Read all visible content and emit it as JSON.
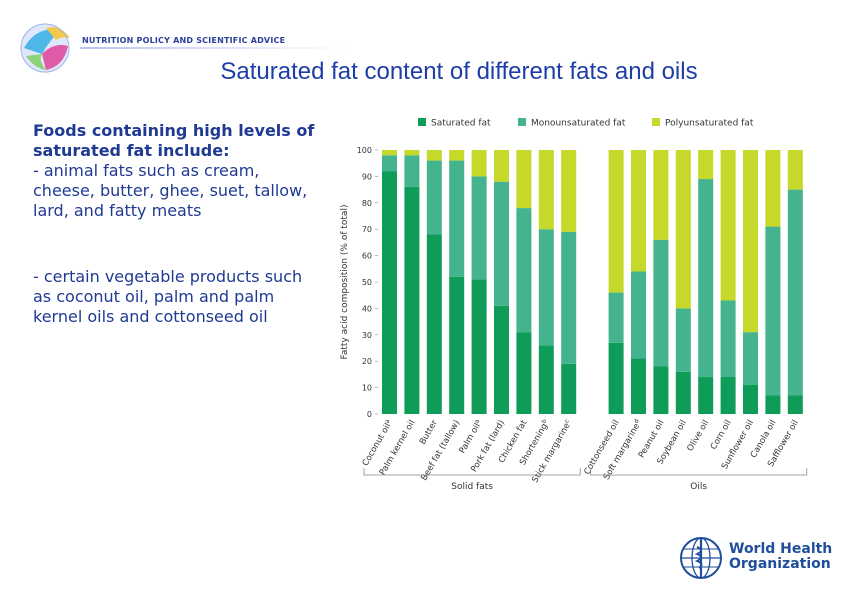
{
  "header": {
    "org_tagline": "NUTRITION POLICY AND SCIENTIFIC ADVICE"
  },
  "slide": {
    "title": "Saturated fat content of different fats and oils"
  },
  "left_text": {
    "heading": "Foods containing high levels of saturated fat include:",
    "bullet1": "- animal fats such as cream, cheese, butter, ghee, suet, tallow, lard, and fatty meats",
    "bullet2": "- certain vegetable products such as coconut oil, palm and palm kernel oils and cottonseed oil"
  },
  "footer": {
    "who_line1": "World Health",
    "who_line2": "Organization"
  },
  "chart_data": {
    "type": "bar",
    "stacked": true,
    "ylabel": "Fatty acid composition (% of total)",
    "ylim": [
      0,
      100
    ],
    "yticks": [
      0,
      10,
      20,
      30,
      40,
      50,
      60,
      70,
      80,
      90,
      100
    ],
    "grid": false,
    "legend_position": "top",
    "categories": [
      "Coconut oil",
      "Palm kernel oil",
      "Butter",
      "Beef fat (tallow)",
      "Palm oil",
      "Pork fat (lard)",
      "Chicken fat",
      "Shortening",
      "Stick margarine",
      "Cottonseed oil",
      "Soft margarine",
      "Peanut oil",
      "Soybean oil",
      "Olive oil",
      "Corn oil",
      "Sunflower oil",
      "Canola oil",
      "Safflower oil"
    ],
    "category_labels": [
      "Coconut oil",
      "Palm kernel oil",
      "Butter",
      "Beef fat (tallow)",
      "Palm oil",
      "Pork fat (lard)",
      "Chicken fat",
      "Shortening",
      "Stick margarine",
      "Cottonseed oil",
      "Soft margarine",
      "Peanut oil",
      "Soybean oil",
      "Olive oil",
      "Corn oil",
      "Sunflower oil",
      "Canola oil",
      "Safflower oil"
    ],
    "label_superscripts": [
      "a",
      "",
      "",
      "",
      "a",
      "",
      "",
      "b",
      "c",
      "",
      "d",
      "",
      "",
      "",
      "",
      "",
      "",
      ""
    ],
    "groups": [
      {
        "label": "Solid fats",
        "categories": [
          "Coconut oil",
          "Palm kernel oil",
          "Butter",
          "Beef fat (tallow)",
          "Palm oil",
          "Pork fat (lard)",
          "Chicken fat",
          "Shortening",
          "Stick margarine"
        ]
      },
      {
        "label": "Oils",
        "categories": [
          "Cottonseed oil",
          "Soft margarine",
          "Peanut oil",
          "Soybean oil",
          "Olive oil",
          "Corn oil",
          "Sunflower oil",
          "Canola oil",
          "Safflower oil"
        ]
      }
    ],
    "series": [
      {
        "name": "Saturated fat",
        "color": "#0f9b58",
        "values": [
          92,
          86,
          68,
          52,
          51,
          41,
          31,
          26,
          19,
          27,
          21,
          18,
          16,
          14,
          14,
          11,
          7,
          7
        ]
      },
      {
        "name": "Monounsaturated fat",
        "color": "#43b48d",
        "values": [
          6,
          12,
          28,
          44,
          39,
          47,
          47,
          44,
          50,
          19,
          33,
          48,
          24,
          75,
          29,
          20,
          64,
          78
        ]
      },
      {
        "name": "Polyunsaturated fat",
        "color": "#c6d829",
        "values": [
          2,
          2,
          4,
          4,
          10,
          12,
          22,
          30,
          31,
          54,
          46,
          34,
          60,
          11,
          57,
          69,
          29,
          15
        ]
      }
    ]
  }
}
